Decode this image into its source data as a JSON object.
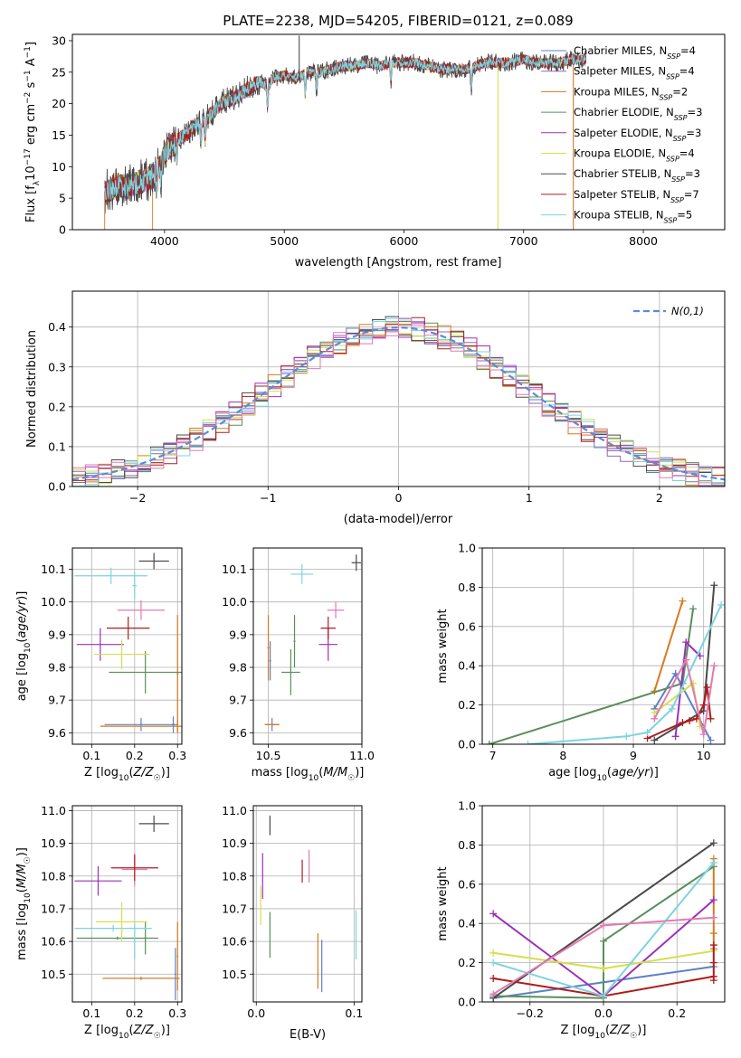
{
  "chart_data": [
    {
      "id": "spectrum",
      "type": "line",
      "title": "PLATE=2238, MJD=54205, FIBERID=0121, z=0.089",
      "xlabel": "wavelength [Angstrom, rest frame]",
      "ylabel": "Flux [f_λ10^-17 erg cm^-2 s^-1 A^-1]",
      "xlim": [
        3230,
        8680
      ],
      "ylim": [
        0,
        31
      ],
      "xticks": [
        4000,
        5000,
        6000,
        7000,
        8000
      ],
      "yticks": [
        0,
        5,
        10,
        15,
        20,
        25,
        30
      ],
      "grid": false,
      "legend_position": "top-right",
      "continuum": {
        "x": [
          3500,
          3560,
          3620,
          3700,
          3780,
          3860,
          3900,
          3960,
          4020,
          4100,
          4200,
          4300,
          4400,
          4500,
          4600,
          4700,
          4800,
          4860,
          4900,
          5000,
          5100,
          5200,
          5300,
          5400,
          5500,
          5600,
          5700,
          5800,
          5900,
          6000,
          6100,
          6200,
          6300,
          6400,
          6500,
          6560,
          6600,
          6700,
          6800,
          6900,
          7000,
          7100,
          7200,
          7300,
          7400,
          7500
        ],
        "y": [
          6.0,
          6.5,
          7.0,
          6.8,
          7.5,
          8.0,
          8.5,
          10.0,
          12.5,
          14.0,
          15.5,
          17.0,
          18.5,
          20.5,
          21.0,
          22.5,
          23.5,
          22.5,
          24.0,
          24.5,
          24.0,
          25.0,
          25.0,
          25.5,
          26.0,
          26.0,
          26.5,
          26.0,
          26.5,
          26.5,
          26.5,
          26.0,
          25.5,
          25.5,
          25.5,
          25.5,
          26.0,
          26.5,
          26.5,
          26.5,
          27.0,
          26.5,
          26.5,
          26.5,
          27.0,
          27.0
        ]
      },
      "series": [
        {
          "name": "Chabrier MILES, N_SSP=4",
          "color": "#5c80c8",
          "seed": 1,
          "noise": 0.9
        },
        {
          "name": "Salpeter MILES, N_SSP=4",
          "color": "#9467bd",
          "seed": 2,
          "noise": 0.9
        },
        {
          "name": "Kroupa MILES, N_SSP=2",
          "color": "#d97a1e",
          "seed": 3,
          "noise": 0.9
        },
        {
          "name": "Chabrier ELODIE, N_SSP=3",
          "color": "#5a8f5a",
          "seed": 4,
          "noise": 0.9
        },
        {
          "name": "Salpeter ELODIE, N_SSP=3",
          "color": "#9b30b8",
          "seed": 5,
          "noise": 0.9
        },
        {
          "name": "Kroupa ELODIE, N_SSP=4",
          "color": "#d4e04c",
          "seed": 6,
          "noise": 0.9
        },
        {
          "name": "Chabrier STELIB, N_SSP=3",
          "color": "#4a4a4a",
          "seed": 7,
          "noise": 1.6
        },
        {
          "name": "Salpeter STELIB, N_SSP=7",
          "color": "#b01c1c",
          "seed": 8,
          "noise": 1.0
        },
        {
          "name": "Kroupa STELIB, N_SSP=5",
          "color": "#7dd3e0",
          "seed": 9,
          "noise": 0.8
        }
      ],
      "legend_labels": [
        "Chabrier MILES, N",
        "Salpeter MILES, N",
        "Kroupa MILES, N",
        "Chabrier ELODIE, N",
        "Salpeter ELODIE, N",
        "Kroupa ELODIE, N",
        "Chabrier STELIB, N",
        "Salpeter STELIB, N",
        "Kroupa STELIB, N"
      ],
      "legend_sub": "SSP",
      "legend_values": [
        "=4",
        "=4",
        "=2",
        "=3",
        "=3",
        "=4",
        "=3",
        "=7",
        "=5"
      ],
      "spikes": [
        {
          "x": 5125,
          "y": 30.8,
          "color": "#4a4a4a"
        },
        {
          "x": 6785,
          "y": 0,
          "color": "#d4e04c"
        },
        {
          "x": 7415,
          "y": 0,
          "color": "#d97a1e"
        }
      ]
    },
    {
      "id": "residuals",
      "type": "histogram",
      "xlabel": "(data-model)/error",
      "ylabel": "Normed distribution",
      "xlim": [
        -2.5,
        2.5
      ],
      "ylim": [
        0,
        0.49
      ],
      "xticks": [
        -2,
        -1,
        0,
        1,
        2
      ],
      "yticks": [
        0.0,
        0.1,
        0.2,
        0.3,
        0.4
      ],
      "grid": true,
      "legend_position": "top-right",
      "gauss_label": "N(0,1)",
      "gauss_color": "#5c8ad8",
      "bin_width": 0.1,
      "colors": [
        "#5c80c8",
        "#9467bd",
        "#d97a1e",
        "#5a8f5a",
        "#9b30b8",
        "#d4e04c",
        "#4a4a4a",
        "#b01c1c",
        "#7dd3e0",
        "#e27ab1"
      ]
    },
    {
      "id": "age_vs_Z",
      "type": "errorbar",
      "xlabel": "Z [log10(Z/Z☉)]",
      "ylabel": "age [log10(age/yr)]",
      "xlim": [
        0.055,
        0.31
      ],
      "ylim": [
        9.565,
        10.165
      ],
      "xticks": [
        0.1,
        0.2,
        0.3
      ],
      "yticks": [
        9.6,
        9.7,
        9.8,
        9.9,
        10.0,
        10.1
      ],
      "grid": true,
      "points": [
        {
          "x": 0.215,
          "y": 9.625,
          "ex": 0.085,
          "ey": 0.02,
          "color": "#5c80c8"
        },
        {
          "x": 0.3,
          "y": 9.62,
          "ex": 0.18,
          "ey": 0.02,
          "color": "#d97a1e"
        },
        {
          "x": 0.29,
          "y": 9.625,
          "ex": 0.004,
          "ey": 0.025,
          "color": "#5c80c8"
        },
        {
          "x": 0.3,
          "y": 9.78,
          "ex": 0.002,
          "ey": 0.18,
          "color": "#d97a1e"
        },
        {
          "x": 0.225,
          "y": 9.785,
          "ex": 0.085,
          "ey": 0.065,
          "color": "#5a8f5a"
        },
        {
          "x": 0.12,
          "y": 9.87,
          "ex": 0.055,
          "ey": 0.05,
          "color": "#9b30b8"
        },
        {
          "x": 0.17,
          "y": 9.84,
          "ex": 0.065,
          "ey": 0.045,
          "color": "#d4e04c"
        },
        {
          "x": 0.185,
          "y": 9.92,
          "ex": 0.05,
          "ey": 0.035,
          "color": "#b01c1c"
        },
        {
          "x": 0.215,
          "y": 9.975,
          "ex": 0.055,
          "ey": 0.03,
          "color": "#e27ab1"
        },
        {
          "x": 0.145,
          "y": 10.08,
          "ex": 0.085,
          "ey": 0.025,
          "color": "#7dd3e0"
        },
        {
          "x": 0.2,
          "y": 10.05,
          "ex": 0.005,
          "ey": 0.04,
          "color": "#7dd3e0"
        },
        {
          "x": 0.245,
          "y": 10.125,
          "ex": 0.035,
          "ey": 0.025,
          "color": "#4a4a4a"
        }
      ]
    },
    {
      "id": "age_vs_mass",
      "type": "errorbar",
      "xlabel": "mass [log10(M/M☉)]",
      "ylabel": "",
      "xlim": [
        10.42,
        11.0
      ],
      "ylim": [
        9.565,
        10.165
      ],
      "xticks": [
        10.5,
        11.0
      ],
      "yticks": [
        9.6,
        9.7,
        9.8,
        9.9,
        10.0,
        10.1
      ],
      "grid": true,
      "points": [
        {
          "x": 10.52,
          "y": 9.625,
          "ex": 0.035,
          "ey": 0.02,
          "color": "#5c80c8"
        },
        {
          "x": 10.52,
          "y": 9.625,
          "ex": 0.04,
          "ey": 0.005,
          "color": "#d97a1e"
        },
        {
          "x": 10.5,
          "y": 9.86,
          "ex": 0.005,
          "ey": 0.1,
          "color": "#d97a1e"
        },
        {
          "x": 10.51,
          "y": 9.82,
          "ex": 0.005,
          "ey": 0.06,
          "color": "#5c80c8"
        },
        {
          "x": 10.62,
          "y": 9.785,
          "ex": 0.05,
          "ey": 0.07,
          "color": "#5a8f5a"
        },
        {
          "x": 10.64,
          "y": 9.88,
          "ex": 0.005,
          "ey": 0.08,
          "color": "#5a8f5a"
        },
        {
          "x": 10.82,
          "y": 9.87,
          "ex": 0.05,
          "ey": 0.05,
          "color": "#9b30b8"
        },
        {
          "x": 10.82,
          "y": 9.92,
          "ex": 0.04,
          "ey": 0.035,
          "color": "#b01c1c"
        },
        {
          "x": 10.86,
          "y": 9.975,
          "ex": 0.045,
          "ey": 0.025,
          "color": "#e27ab1"
        },
        {
          "x": 10.68,
          "y": 10.085,
          "ex": 0.06,
          "ey": 0.03,
          "color": "#7dd3e0"
        },
        {
          "x": 10.97,
          "y": 10.12,
          "ex": 0.025,
          "ey": 0.025,
          "color": "#4a4a4a"
        }
      ]
    },
    {
      "id": "massweight_vs_age",
      "type": "line",
      "xlabel": "age [log10(age/yr)]",
      "ylabel": "mass weight",
      "xlim": [
        6.85,
        10.3
      ],
      "ylim": [
        0,
        1.0
      ],
      "xticks": [
        7,
        8,
        9,
        10
      ],
      "yticks": [
        0.0,
        0.2,
        0.4,
        0.6,
        0.8,
        1.0
      ],
      "grid": true,
      "series": [
        {
          "color": "#5c80c8",
          "x": [
            9.3,
            9.6,
            10.1
          ],
          "y": [
            0.18,
            0.36,
            0.02
          ]
        },
        {
          "color": "#d97a1e",
          "x": [
            9.3,
            9.7
          ],
          "y": [
            0.27,
            0.73
          ]
        },
        {
          "color": "#5a8f5a",
          "x": [
            6.95,
            9.7,
            9.85
          ],
          "y": [
            0.0,
            0.31,
            0.69
          ]
        },
        {
          "color": "#9b30b8",
          "x": [
            9.6,
            9.75,
            9.95
          ],
          "y": [
            0.04,
            0.52,
            0.45
          ]
        },
        {
          "color": "#d4e04c",
          "x": [
            9.3,
            9.85,
            9.95
          ],
          "y": [
            0.16,
            0.31,
            0.09
          ]
        },
        {
          "color": "#4a4a4a",
          "x": [
            9.3,
            10.0,
            10.15
          ],
          "y": [
            0.02,
            0.17,
            0.81
          ]
        },
        {
          "color": "#b01c1c",
          "x": [
            9.2,
            9.7,
            9.8,
            9.9,
            10.0,
            10.05,
            10.1
          ],
          "y": [
            0.03,
            0.11,
            0.12,
            0.13,
            0.2,
            0.29,
            0.13
          ]
        },
        {
          "color": "#7dd3e0",
          "x": [
            7.5,
            8.9,
            9.2,
            9.55,
            10.25
          ],
          "y": [
            0.0,
            0.04,
            0.06,
            0.18,
            0.71
          ]
        },
        {
          "color": "#e27ab1",
          "x": [
            9.3,
            9.75,
            10.0,
            10.15
          ],
          "y": [
            0.13,
            0.43,
            0.05,
            0.4
          ]
        }
      ]
    },
    {
      "id": "mass_vs_Z",
      "type": "errorbar",
      "xlabel": "Z [log10(Z/Z☉)]",
      "ylabel": "mass [log10(M/M☉)]",
      "xlim": [
        0.055,
        0.31
      ],
      "ylim": [
        10.415,
        11.015
      ],
      "xticks": [
        0.1,
        0.2,
        0.3
      ],
      "yticks": [
        10.5,
        10.6,
        10.7,
        10.8,
        10.9,
        11.0
      ],
      "grid": true,
      "points": [
        {
          "x": 0.215,
          "y": 10.487,
          "ex": 0.085,
          "ey": 0.005,
          "color": "#5c80c8"
        },
        {
          "x": 0.215,
          "y": 10.487,
          "ex": 0.09,
          "ey": 0.004,
          "color": "#d97a1e"
        },
        {
          "x": 0.295,
          "y": 10.5,
          "ex": 0.002,
          "ey": 0.08,
          "color": "#5c80c8"
        },
        {
          "x": 0.3,
          "y": 10.555,
          "ex": 0.002,
          "ey": 0.105,
          "color": "#d97a1e"
        },
        {
          "x": 0.16,
          "y": 10.61,
          "ex": 0.095,
          "ey": 0.005,
          "color": "#5a8f5a"
        },
        {
          "x": 0.225,
          "y": 10.61,
          "ex": 0.003,
          "ey": 0.05,
          "color": "#5a8f5a"
        },
        {
          "x": 0.15,
          "y": 10.64,
          "ex": 0.09,
          "ey": 0.01,
          "color": "#7dd3e0"
        },
        {
          "x": 0.2,
          "y": 10.6,
          "ex": 0.003,
          "ey": 0.055,
          "color": "#7dd3e0"
        },
        {
          "x": 0.17,
          "y": 10.66,
          "ex": 0.06,
          "ey": 0.06,
          "color": "#d4e04c"
        },
        {
          "x": 0.115,
          "y": 10.785,
          "ex": 0.055,
          "ey": 0.045,
          "color": "#9b30b8"
        },
        {
          "x": 0.2,
          "y": 10.82,
          "ex": 0.03,
          "ey": 0.05,
          "color": "#e27ab1"
        },
        {
          "x": 0.2,
          "y": 10.825,
          "ex": 0.055,
          "ey": 0.04,
          "color": "#b01c1c"
        },
        {
          "x": 0.245,
          "y": 10.96,
          "ex": 0.035,
          "ey": 0.025,
          "color": "#4a4a4a"
        }
      ]
    },
    {
      "id": "mass_vs_EBV",
      "type": "errorbar",
      "xlabel": "E(B-V)",
      "ylabel": "",
      "xlim": [
        -0.003,
        0.108
      ],
      "ylim": [
        10.415,
        11.015
      ],
      "xticks": [
        0.0,
        0.1
      ],
      "yticks": [
        10.5,
        10.6,
        10.7,
        10.8,
        10.9,
        11.0
      ],
      "grid": true,
      "points": [
        {
          "x": 0.0045,
          "y": 10.71,
          "ex": 0,
          "ey": 0.06,
          "color": "#d4e04c"
        },
        {
          "x": 0.0065,
          "y": 10.8,
          "ex": 0,
          "ey": 0.07,
          "color": "#9b30b8"
        },
        {
          "x": 0.014,
          "y": 10.62,
          "ex": 0,
          "ey": 0.07,
          "color": "#5a8f5a"
        },
        {
          "x": 0.014,
          "y": 10.955,
          "ex": 0,
          "ey": 0.03,
          "color": "#4a4a4a"
        },
        {
          "x": 0.047,
          "y": 10.815,
          "ex": 0,
          "ey": 0.035,
          "color": "#b01c1c"
        },
        {
          "x": 0.054,
          "y": 10.83,
          "ex": 0,
          "ey": 0.05,
          "color": "#e27ab1"
        },
        {
          "x": 0.063,
          "y": 10.54,
          "ex": 0,
          "ey": 0.085,
          "color": "#d97a1e"
        },
        {
          "x": 0.067,
          "y": 10.525,
          "ex": 0,
          "ey": 0.08,
          "color": "#5c80c8"
        },
        {
          "x": 0.102,
          "y": 10.62,
          "ex": 0,
          "ey": 0.075,
          "color": "#7dd3e0"
        }
      ]
    },
    {
      "id": "massweight_vs_Z",
      "type": "line",
      "xlabel": "Z [log10(Z/Z☉)]",
      "ylabel": "mass weight",
      "xlim": [
        -0.33,
        0.33
      ],
      "ylim": [
        0,
        1.0
      ],
      "xticks": [
        -0.2,
        0.0,
        0.2
      ],
      "yticks": [
        0.0,
        0.2,
        0.4,
        0.6,
        0.8,
        1.0
      ],
      "grid": true,
      "series": [
        {
          "color": "#5c80c8",
          "x": [
            -0.3,
            0.0,
            0.3
          ],
          "y": [
            0.02,
            0.1,
            0.18
          ]
        },
        {
          "color": "#d97a1e",
          "x": [
            0.3,
            0.3,
            0.3
          ],
          "y": [
            0.27,
            0.35,
            0.73
          ]
        },
        {
          "color": "#5a8f5a",
          "x": [
            -0.3,
            0.0,
            0.0,
            0.3
          ],
          "y": [
            0.03,
            0.02,
            0.31,
            0.69
          ]
        },
        {
          "color": "#9b30b8",
          "x": [
            -0.3,
            0.0,
            0.3
          ],
          "y": [
            0.45,
            0.03,
            0.52
          ]
        },
        {
          "color": "#d4e04c",
          "x": [
            -0.3,
            0.0,
            0.3
          ],
          "y": [
            0.25,
            0.17,
            0.26
          ]
        },
        {
          "color": "#4a4a4a",
          "x": [
            -0.3,
            0.3
          ],
          "y": [
            0.02,
            0.81
          ]
        },
        {
          "color": "#b01c1c",
          "x": [
            -0.3,
            0.0,
            0.3,
            0.3,
            0.3,
            0.3
          ],
          "y": [
            0.12,
            0.03,
            0.13,
            0.11,
            0.2,
            0.29
          ]
        },
        {
          "color": "#7dd3e0",
          "x": [
            -0.3,
            0.0,
            0.3
          ],
          "y": [
            0.2,
            0.03,
            0.71
          ]
        },
        {
          "color": "#e27ab1",
          "x": [
            -0.3,
            0.0,
            0.3
          ],
          "y": [
            0.04,
            0.39,
            0.43
          ]
        }
      ]
    }
  ]
}
